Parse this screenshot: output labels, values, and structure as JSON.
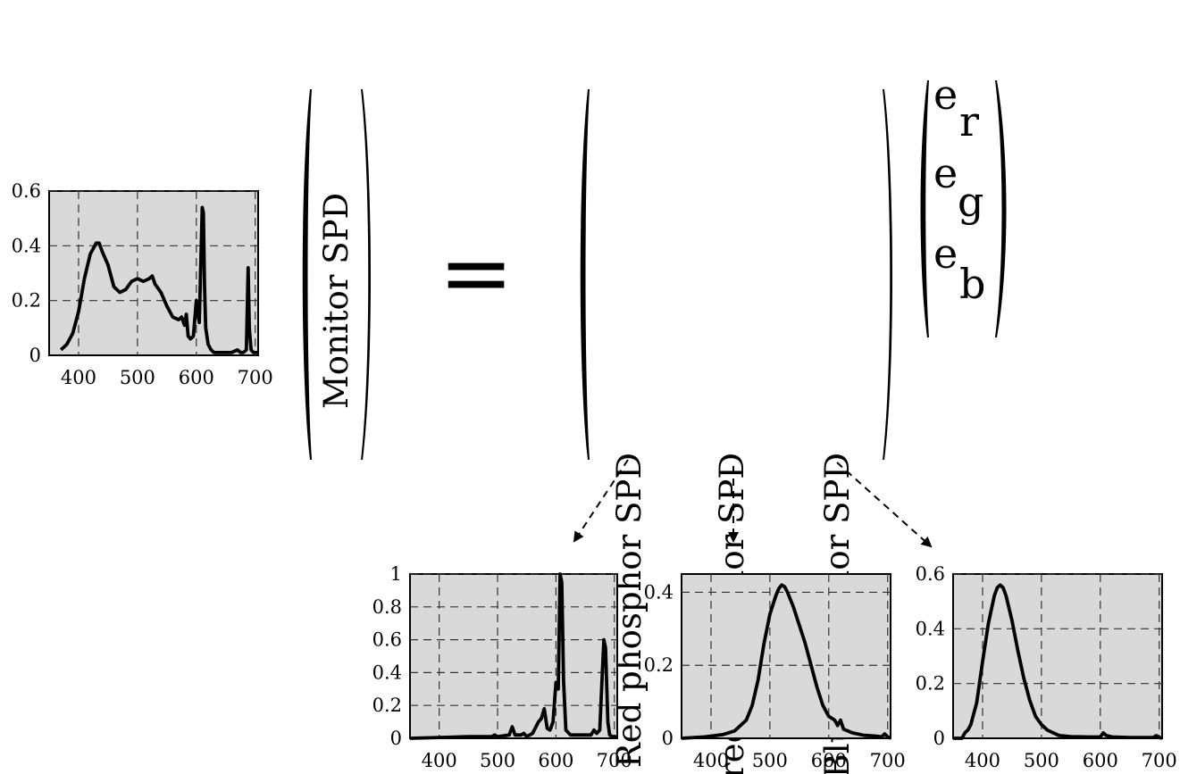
{
  "equation": {
    "lhs_label": "Monitor SPD",
    "equals": "=",
    "rhs_columns": [
      "Red phosphor SPD",
      "Green phosphor SPD",
      "Blue phosphor SPD"
    ],
    "weights": [
      {
        "base": "e",
        "sub": "r"
      },
      {
        "base": "e",
        "sub": "g"
      },
      {
        "base": "e",
        "sub": "b"
      }
    ]
  },
  "chart_data": [
    {
      "id": "monitor",
      "type": "line",
      "xlim": [
        350,
        705
      ],
      "ylim": [
        0,
        0.6
      ],
      "xticks": [
        400,
        500,
        600,
        700
      ],
      "xtick_labels": [
        "400",
        "500",
        "600",
        "700"
      ],
      "yticks": [
        0,
        0.2,
        0.4,
        0.6
      ],
      "ytick_labels": [
        "0",
        "0.2",
        "0.4",
        "0.6"
      ],
      "grid": true,
      "x": [
        370,
        380,
        390,
        400,
        410,
        420,
        430,
        435,
        440,
        450,
        460,
        470,
        480,
        490,
        500,
        510,
        520,
        525,
        530,
        540,
        550,
        560,
        570,
        575,
        580,
        583,
        586,
        590,
        595,
        600,
        605,
        610,
        612,
        614,
        616,
        620,
        625,
        630,
        640,
        650,
        660,
        670,
        675,
        680,
        685,
        688,
        690,
        693,
        697,
        705
      ],
      "y": [
        0.02,
        0.04,
        0.08,
        0.16,
        0.28,
        0.37,
        0.41,
        0.41,
        0.38,
        0.33,
        0.25,
        0.23,
        0.24,
        0.27,
        0.28,
        0.27,
        0.28,
        0.29,
        0.26,
        0.23,
        0.18,
        0.14,
        0.13,
        0.14,
        0.11,
        0.15,
        0.07,
        0.06,
        0.07,
        0.2,
        0.12,
        0.54,
        0.52,
        0.25,
        0.1,
        0.04,
        0.02,
        0.01,
        0.01,
        0.01,
        0.01,
        0.02,
        0.01,
        0.01,
        0.02,
        0.32,
        0.1,
        0.02,
        0.01,
        0.01
      ]
    },
    {
      "id": "red",
      "type": "line",
      "xlim": [
        350,
        705
      ],
      "ylim": [
        0,
        1
      ],
      "xticks": [
        400,
        500,
        600,
        700
      ],
      "xtick_labels": [
        "400",
        "500",
        "600",
        "700"
      ],
      "yticks": [
        0,
        0.2,
        0.4,
        0.6,
        0.8,
        1
      ],
      "ytick_labels": [
        "0",
        "0.2",
        "0.4",
        "0.6",
        "0.8",
        "1"
      ],
      "grid": true,
      "x": [
        350,
        400,
        450,
        490,
        495,
        500,
        520,
        525,
        530,
        540,
        545,
        550,
        560,
        570,
        575,
        580,
        585,
        590,
        595,
        600,
        604,
        607,
        610,
        613,
        617,
        625,
        640,
        660,
        665,
        670,
        675,
        682,
        685,
        689,
        692,
        697,
        705
      ],
      "y": [
        0.0,
        0.005,
        0.01,
        0.01,
        0.02,
        0.01,
        0.02,
        0.07,
        0.02,
        0.02,
        0.03,
        0.01,
        0.03,
        0.1,
        0.12,
        0.18,
        0.06,
        0.05,
        0.1,
        0.34,
        0.3,
        1.0,
        0.95,
        0.35,
        0.05,
        0.02,
        0.02,
        0.02,
        0.05,
        0.03,
        0.05,
        0.6,
        0.55,
        0.1,
        0.02,
        0.01,
        0.01
      ]
    },
    {
      "id": "green",
      "type": "line",
      "xlim": [
        350,
        705
      ],
      "ylim": [
        0,
        0.45
      ],
      "xticks": [
        400,
        500,
        600,
        700
      ],
      "xtick_labels": [
        "400",
        "500",
        "600",
        "700"
      ],
      "yticks": [
        0,
        0.2,
        0.4
      ],
      "ytick_labels": [
        "0",
        "0.2",
        "0.4"
      ],
      "grid": true,
      "x": [
        350,
        390,
        420,
        440,
        460,
        470,
        480,
        490,
        500,
        510,
        515,
        520,
        525,
        530,
        540,
        550,
        560,
        570,
        580,
        590,
        600,
        610,
        615,
        620,
        625,
        640,
        660,
        680,
        690,
        695,
        700,
        705
      ],
      "y": [
        0.0,
        0.004,
        0.01,
        0.02,
        0.05,
        0.09,
        0.16,
        0.26,
        0.34,
        0.39,
        0.41,
        0.42,
        0.415,
        0.4,
        0.36,
        0.31,
        0.26,
        0.2,
        0.14,
        0.09,
        0.06,
        0.05,
        0.035,
        0.05,
        0.025,
        0.015,
        0.008,
        0.006,
        0.004,
        0.012,
        0.004,
        0.0
      ]
    },
    {
      "id": "blue",
      "type": "line",
      "xlim": [
        350,
        705
      ],
      "ylim": [
        0,
        0.6
      ],
      "xticks": [
        400,
        500,
        600,
        700
      ],
      "xtick_labels": [
        "400",
        "500",
        "600",
        "700"
      ],
      "yticks": [
        0,
        0.2,
        0.4,
        0.6
      ],
      "ytick_labels": [
        "0",
        "0.2",
        "0.4",
        "0.6"
      ],
      "grid": true,
      "x": [
        350,
        365,
        370,
        375,
        380,
        390,
        400,
        410,
        420,
        425,
        430,
        435,
        440,
        450,
        460,
        470,
        480,
        490,
        500,
        510,
        520,
        530,
        550,
        580,
        600,
        605,
        610,
        620,
        650,
        690,
        695,
        700,
        705
      ],
      "y": [
        0.0,
        0.0,
        0.02,
        0.03,
        0.05,
        0.13,
        0.28,
        0.42,
        0.52,
        0.55,
        0.56,
        0.55,
        0.52,
        0.43,
        0.32,
        0.22,
        0.14,
        0.08,
        0.05,
        0.03,
        0.02,
        0.01,
        0.006,
        0.005,
        0.005,
        0.02,
        0.01,
        0.005,
        0.003,
        0.003,
        0.01,
        0.003,
        0.0
      ]
    }
  ]
}
